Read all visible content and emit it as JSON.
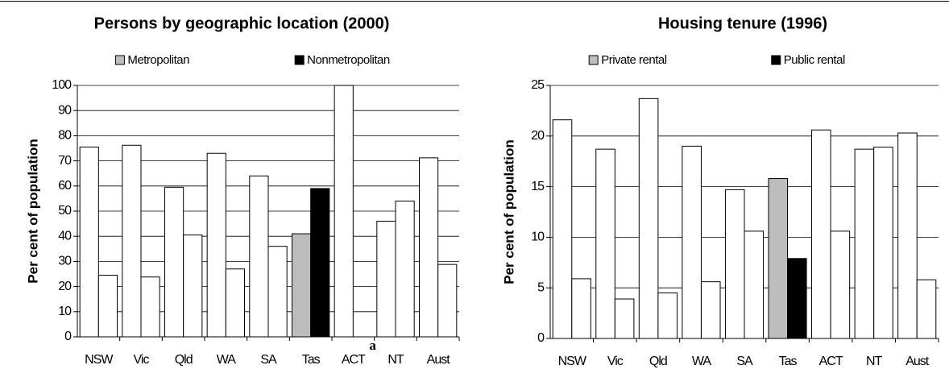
{
  "chart_data": [
    {
      "type": "bar",
      "title": "Persons by geographic location (2000)",
      "ylabel": "Per cent of population",
      "categories": [
        "NSW",
        "Vic",
        "Qld",
        "WA",
        "SA",
        "Tas",
        "ACT",
        "NT",
        "Aust"
      ],
      "series": [
        {
          "name": "Metropolitan",
          "color": "#bdbdbd",
          "colors": [
            "#ffffff",
            "#ffffff",
            "#ffffff",
            "#ffffff",
            "#ffffff",
            "#bdbdbd",
            "#ffffff",
            "#ffffff",
            "#ffffff"
          ],
          "values": [
            75.5,
            76.2,
            59.5,
            73,
            64,
            41,
            100,
            46,
            71.2
          ]
        },
        {
          "name": "Nonmetropolitan",
          "color": "#000000",
          "colors": [
            "#ffffff",
            "#ffffff",
            "#ffffff",
            "#ffffff",
            "#ffffff",
            "#000000",
            "#ffffff",
            "#ffffff",
            "#ffffff"
          ],
          "values": [
            24.5,
            23.8,
            40.5,
            27,
            36,
            59,
            0,
            54,
            28.8
          ]
        }
      ],
      "annotations": [
        {
          "text": "a",
          "category": "ACT"
        }
      ],
      "ylim": [
        0,
        100
      ],
      "yticks": [
        0,
        10,
        20,
        30,
        40,
        50,
        60,
        70,
        80,
        90,
        100
      ],
      "grid": true,
      "legend": "top"
    },
    {
      "type": "bar",
      "title": "Housing tenure (1996)",
      "ylabel": "Per cent of population",
      "categories": [
        "NSW",
        "Vic",
        "Qld",
        "WA",
        "SA",
        "Tas",
        "ACT",
        "NT",
        "Aust"
      ],
      "series": [
        {
          "name": "Private rental",
          "color": "#bdbdbd",
          "colors": [
            "#ffffff",
            "#ffffff",
            "#ffffff",
            "#ffffff",
            "#ffffff",
            "#bdbdbd",
            "#ffffff",
            "#ffffff",
            "#ffffff"
          ],
          "values": [
            21.6,
            18.7,
            23.7,
            19,
            14.7,
            15.8,
            20.6,
            18.7,
            20.3
          ]
        },
        {
          "name": "Public rental",
          "color": "#000000",
          "colors": [
            "#ffffff",
            "#ffffff",
            "#ffffff",
            "#ffffff",
            "#ffffff",
            "#000000",
            "#ffffff",
            "#ffffff",
            "#ffffff"
          ],
          "values": [
            5.9,
            3.9,
            4.5,
            5.6,
            10.6,
            7.9,
            10.6,
            18.9,
            5.8
          ]
        }
      ],
      "ylim": [
        0,
        25
      ],
      "yticks": [
        0,
        5,
        10,
        15,
        20,
        25
      ],
      "grid": true,
      "legend": "top"
    }
  ]
}
